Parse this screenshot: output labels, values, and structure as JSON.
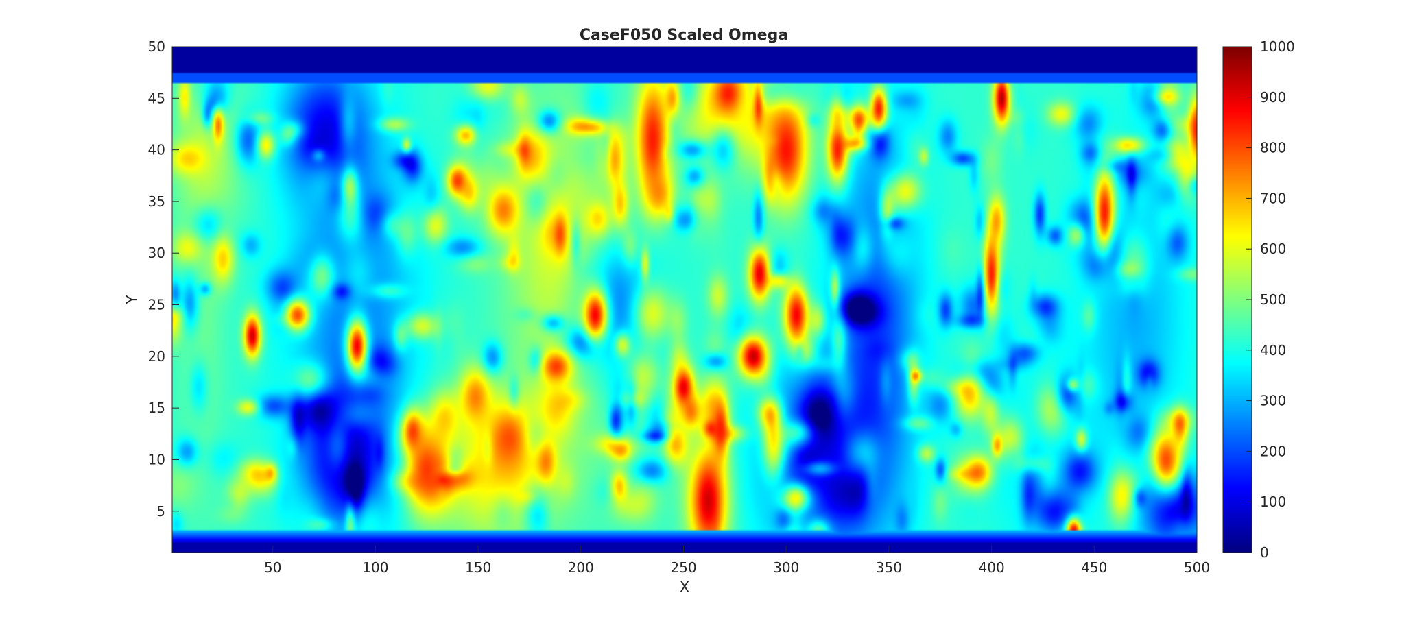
{
  "chart_data": {
    "type": "heatmap",
    "title": "CaseF050 Scaled Omega",
    "xlabel": "X",
    "ylabel": "Y",
    "xlim": [
      1,
      500
    ],
    "ylim": [
      1,
      50
    ],
    "x_ticks": [
      50,
      100,
      150,
      200,
      250,
      300,
      350,
      400,
      450,
      500
    ],
    "y_ticks": [
      5,
      10,
      15,
      20,
      25,
      30,
      35,
      40,
      45,
      50
    ],
    "colormap": "jet",
    "colorbar": {
      "range": [
        0,
        1000
      ],
      "ticks": [
        0,
        100,
        200,
        300,
        400,
        500,
        600,
        700,
        800,
        900,
        1000
      ],
      "placement": "right"
    },
    "grid": false,
    "field": {
      "background_value": 420,
      "low_value_band_y_below": 2,
      "low_value_band_y_above": 47.5,
      "regions": [
        {
          "x": 20,
          "y": 40,
          "rx": 18,
          "ry": 8,
          "v": 520
        },
        {
          "x": 15,
          "y": 25,
          "rx": 12,
          "ry": 20,
          "v": 480
        },
        {
          "x": 90,
          "y": 25,
          "rx": 30,
          "ry": 18,
          "v": 250
        },
        {
          "x": 75,
          "y": 42,
          "rx": 20,
          "ry": 6,
          "v": 150
        },
        {
          "x": 85,
          "y": 10,
          "rx": 20,
          "ry": 7,
          "v": 120
        },
        {
          "x": 130,
          "y": 44,
          "rx": 40,
          "ry": 4,
          "v": 430
        },
        {
          "x": 160,
          "y": 9,
          "rx": 30,
          "ry": 7,
          "v": 650
        },
        {
          "x": 190,
          "y": 30,
          "rx": 25,
          "ry": 14,
          "v": 600
        },
        {
          "x": 215,
          "y": 25,
          "rx": 20,
          "ry": 6,
          "v": 200
        },
        {
          "x": 230,
          "y": 10,
          "rx": 30,
          "ry": 8,
          "v": 450
        },
        {
          "x": 275,
          "y": 44,
          "rx": 25,
          "ry": 5,
          "v": 700
        },
        {
          "x": 320,
          "y": 10,
          "rx": 30,
          "ry": 10,
          "v": 130
        },
        {
          "x": 345,
          "y": 26,
          "rx": 20,
          "ry": 16,
          "v": 200
        },
        {
          "x": 425,
          "y": 10,
          "rx": 25,
          "ry": 10,
          "v": 350
        },
        {
          "x": 470,
          "y": 24,
          "rx": 25,
          "ry": 16,
          "v": 300
        },
        {
          "x": 490,
          "y": 5,
          "rx": 15,
          "ry": 4,
          "v": 80
        }
      ],
      "hot_spots": [
        {
          "x": 235,
          "y": 41,
          "rx": 8,
          "ry": 6,
          "v": 850
        },
        {
          "x": 300,
          "y": 40,
          "rx": 10,
          "ry": 5,
          "v": 860
        },
        {
          "x": 262,
          "y": 6,
          "rx": 9,
          "ry": 5,
          "v": 920
        },
        {
          "x": 125,
          "y": 9,
          "rx": 10,
          "ry": 4,
          "v": 820
        },
        {
          "x": 165,
          "y": 12,
          "rx": 10,
          "ry": 3,
          "v": 800
        },
        {
          "x": 40,
          "y": 22,
          "rx": 4,
          "ry": 2,
          "v": 920
        },
        {
          "x": 91,
          "y": 21,
          "rx": 5,
          "ry": 2.5,
          "v": 880
        },
        {
          "x": 284,
          "y": 20,
          "rx": 7,
          "ry": 2,
          "v": 930
        },
        {
          "x": 305,
          "y": 24,
          "rx": 6,
          "ry": 3,
          "v": 880
        },
        {
          "x": 405,
          "y": 45,
          "rx": 4,
          "ry": 2.5,
          "v": 950
        },
        {
          "x": 207,
          "y": 24,
          "rx": 6,
          "ry": 2.5,
          "v": 880
        },
        {
          "x": 188,
          "y": 19,
          "rx": 7,
          "ry": 1.5,
          "v": 820
        },
        {
          "x": 485,
          "y": 10,
          "rx": 8,
          "ry": 3,
          "v": 800
        },
        {
          "x": 440,
          "y": 3,
          "rx": 4,
          "ry": 1.5,
          "v": 900
        },
        {
          "x": 325,
          "y": 40,
          "rx": 5,
          "ry": 3,
          "v": 850
        },
        {
          "x": 287,
          "y": 28,
          "rx": 5,
          "ry": 2.5,
          "v": 900
        },
        {
          "x": 400,
          "y": 28,
          "rx": 4,
          "ry": 4,
          "v": 850
        },
        {
          "x": 455,
          "y": 34,
          "rx": 5,
          "ry": 4,
          "v": 850
        },
        {
          "x": 140,
          "y": 37,
          "rx": 5,
          "ry": 1.5,
          "v": 820
        },
        {
          "x": 62,
          "y": 24,
          "rx": 6,
          "ry": 1.5,
          "v": 800
        },
        {
          "x": 345,
          "y": 44,
          "rx": 4,
          "ry": 2,
          "v": 850
        },
        {
          "x": 500,
          "y": 42,
          "rx": 4,
          "ry": 3,
          "v": 850
        },
        {
          "x": 250,
          "y": 17,
          "rx": 5,
          "ry": 2,
          "v": 900
        },
        {
          "x": 268,
          "y": 13,
          "rx": 4,
          "ry": 3,
          "v": 850
        }
      ]
    }
  }
}
